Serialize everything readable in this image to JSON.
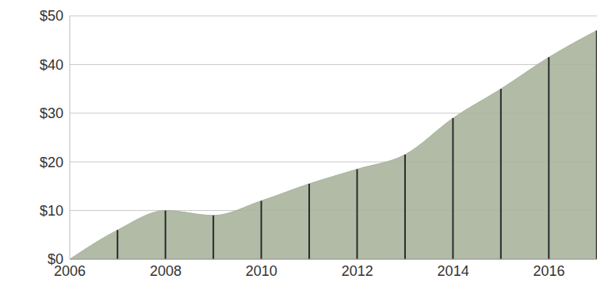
{
  "chart_data": {
    "type": "area",
    "x": [
      2006,
      2007,
      2008,
      2009,
      2010,
      2011,
      2012,
      2013,
      2014,
      2015,
      2016,
      2017
    ],
    "values": [
      0,
      6,
      10,
      9,
      12,
      15.5,
      18.5,
      21.5,
      29,
      35,
      41.5,
      47
    ],
    "color": "#a9b49c",
    "xlim": [
      2006,
      2017
    ],
    "xticks": [
      2006,
      2008,
      2010,
      2012,
      2014,
      2016
    ],
    "ylim": [
      0,
      50
    ],
    "yticks": [
      {
        "value": 0,
        "label": "$0"
      },
      {
        "value": 10,
        "label": "$10"
      },
      {
        "value": 20,
        "label": "$20"
      },
      {
        "value": 30,
        "label": "$30"
      },
      {
        "value": 40,
        "label": "$40"
      },
      {
        "value": 50,
        "label": "$50"
      }
    ],
    "grid": true
  }
}
